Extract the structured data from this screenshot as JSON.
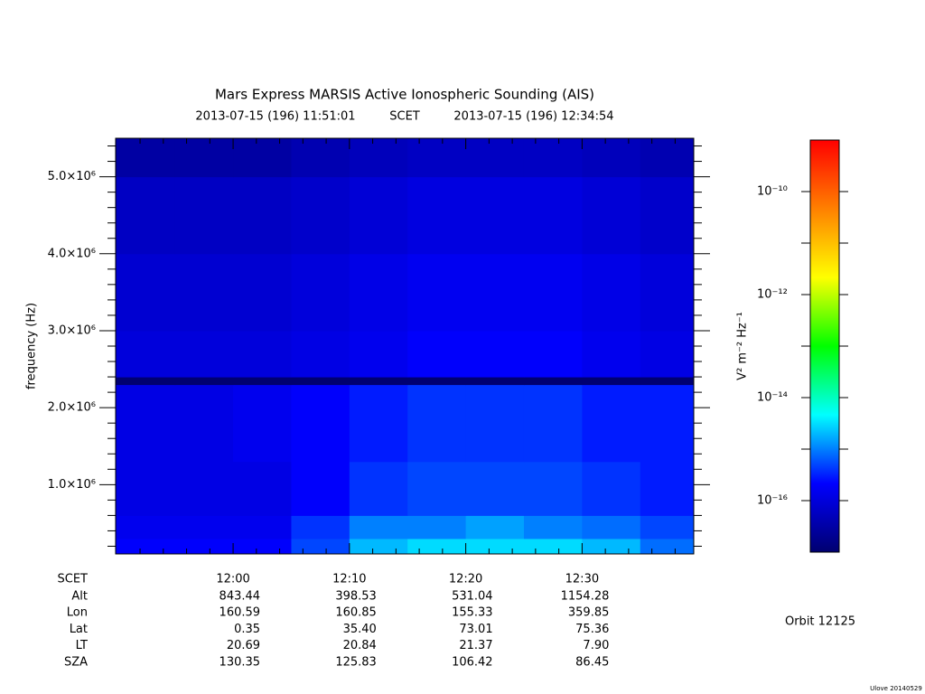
{
  "chart_data": {
    "type": "spectrogram",
    "title": "Mars Express MARSIS Active Ionospheric Sounding (AIS)",
    "subtitle_start": "2013-07-15 (196) 11:51:01",
    "subtitle_scale": "SCET",
    "subtitle_end": "2013-07-15 (196) 12:34:54",
    "ylabel": "frequency (Hz)",
    "colorbar_label": "V² m⁻² Hz⁻¹",
    "orbit": "Orbit 12125",
    "footer": "Ulove 20140529",
    "xlim": [
      709.9,
      759.6
    ],
    "xticks": [
      {
        "value": 720,
        "label": "12:00"
      },
      {
        "value": 730,
        "label": "12:10"
      },
      {
        "value": 740,
        "label": "12:20"
      },
      {
        "value": 750,
        "label": "12:30"
      }
    ],
    "xminorticks": [
      712,
      714,
      716,
      718,
      722,
      724,
      726,
      728,
      732,
      734,
      736,
      738,
      742,
      744,
      746,
      748,
      752,
      754,
      756,
      758
    ],
    "ylim": [
      100000,
      5500000
    ],
    "yticks": [
      {
        "value": 1000000,
        "label": "1.0×10⁶"
      },
      {
        "value": 2000000,
        "label": "2.0×10⁶"
      },
      {
        "value": 3000000,
        "label": "3.0×10⁶"
      },
      {
        "value": 4000000,
        "label": "4.0×10⁶"
      },
      {
        "value": 5000000,
        "label": "5.0×10⁶"
      }
    ],
    "yminorticks": [
      200000,
      400000,
      600000,
      800000,
      1200000,
      1400000,
      1600000,
      1800000,
      2200000,
      2400000,
      2600000,
      2800000,
      3200000,
      3400000,
      3600000,
      3800000,
      4200000,
      4400000,
      4600000,
      4800000,
      5200000,
      5400000
    ],
    "clim": [
      1e-17,
      1e-09
    ],
    "cscale": "log",
    "cticks": [
      {
        "value": 1e-10,
        "label": "10⁻¹⁰"
      },
      {
        "value": 1e-12,
        "label": "10⁻¹²"
      },
      {
        "value": 1e-14,
        "label": "10⁻¹⁴"
      },
      {
        "value": 1e-16,
        "label": "10⁻¹⁶"
      }
    ],
    "cminorticks": [
      1e-11,
      1e-13,
      1e-15
    ],
    "colormap": [
      "#000070",
      "#0000ff",
      "#00ffff",
      "#00ff00",
      "#ffff00",
      "#ff8000",
      "#ff0000"
    ],
    "xbins": [
      709.9,
      715,
      720,
      725,
      730,
      735,
      740,
      745,
      750,
      755,
      759.6
    ],
    "ybins": [
      100000,
      300000,
      600000,
      1300000,
      2300000,
      2400000,
      3000000,
      4000000,
      5000000,
      5500000
    ],
    "z": [
      [
        2e-16,
        2e-16,
        2e-16,
        5e-16,
        2e-15,
        3e-15,
        3e-15,
        3e-15,
        2e-15,
        8e-16
      ],
      [
        1.5e-16,
        1.5e-16,
        1.5e-16,
        4e-16,
        1e-15,
        1e-15,
        1.5e-15,
        1e-15,
        8e-16,
        5e-16
      ],
      [
        1.2e-16,
        1.2e-16,
        1.2e-16,
        2e-16,
        4e-16,
        5e-16,
        5e-16,
        5e-16,
        4e-16,
        3e-16
      ],
      [
        1.2e-16,
        1.2e-16,
        1.5e-16,
        2e-16,
        3e-16,
        4e-16,
        4e-16,
        4e-16,
        3e-16,
        3e-16
      ],
      [
        1e-17,
        1e-17,
        1e-17,
        1e-17,
        1e-17,
        1e-17,
        1e-17,
        1e-17,
        1e-17,
        1e-17
      ],
      [
        1e-16,
        1e-16,
        1e-16,
        1.2e-16,
        1.5e-16,
        2e-16,
        2e-16,
        2e-16,
        1.5e-16,
        1.2e-16
      ],
      [
        8e-17,
        8e-17,
        8e-17,
        1e-16,
        1.3e-16,
        1.6e-16,
        1.6e-16,
        1.6e-16,
        1.3e-16,
        1e-16
      ],
      [
        6e-17,
        6e-17,
        6e-17,
        7e-17,
        9e-17,
        1.1e-16,
        1.1e-16,
        1.1e-16,
        9e-17,
        7e-17
      ],
      [
        3e-17,
        3e-17,
        3e-17,
        4e-17,
        5e-17,
        6e-17,
        6e-17,
        6e-17,
        5e-17,
        4e-17
      ]
    ],
    "ephemeris": {
      "scet_label": "SCET",
      "rows": [
        {
          "label": "Alt",
          "values": [
            "843.44",
            "398.53",
            "531.04",
            "1154.28"
          ]
        },
        {
          "label": "Lon",
          "values": [
            "160.59",
            "160.85",
            "155.33",
            "359.85"
          ]
        },
        {
          "label": "Lat",
          "values": [
            "0.35",
            "35.40",
            "73.01",
            "75.36"
          ]
        },
        {
          "label": "LT",
          "values": [
            "20.69",
            "20.84",
            "21.37",
            "7.90"
          ]
        },
        {
          "label": "SZA",
          "values": [
            "130.35",
            "125.83",
            "106.42",
            "86.45"
          ]
        }
      ]
    }
  }
}
